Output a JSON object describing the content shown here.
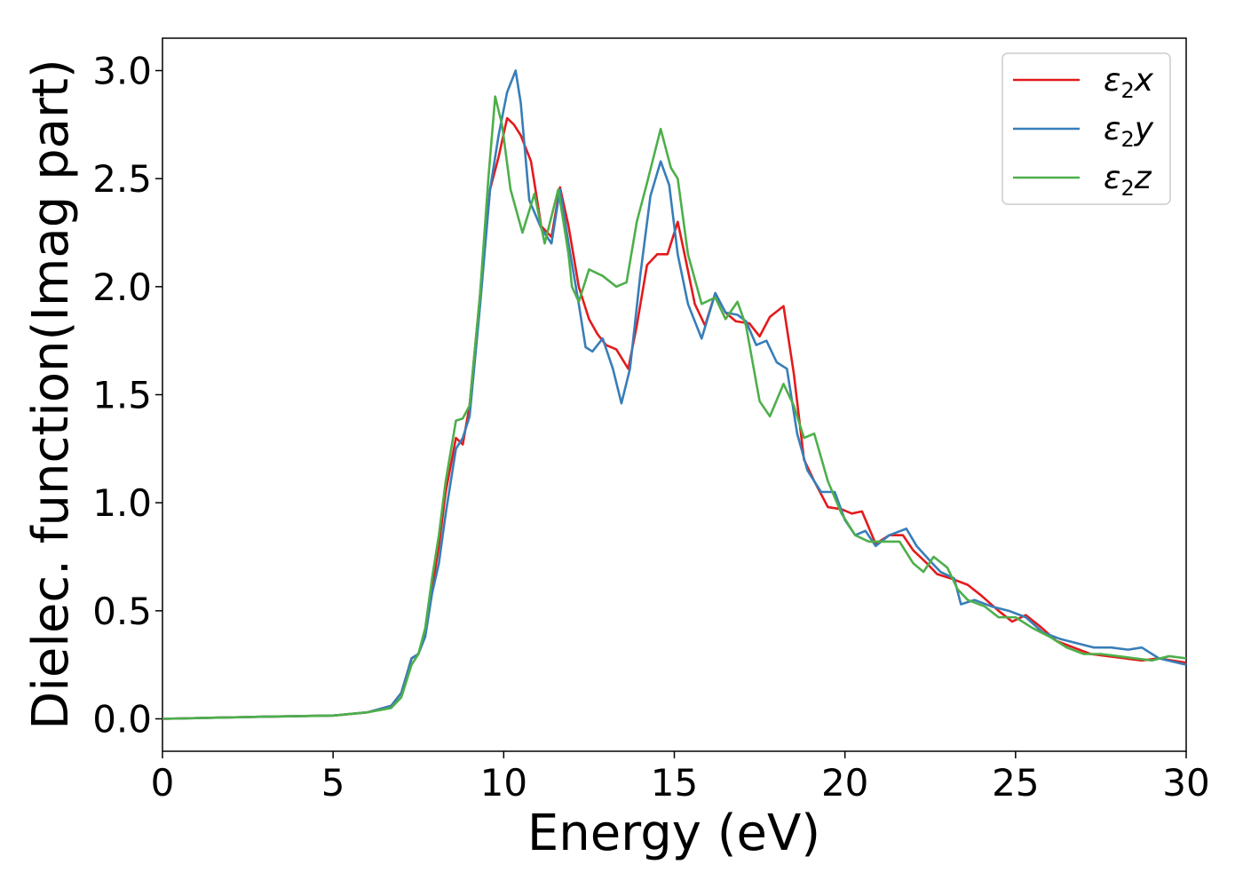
{
  "chart_data": {
    "type": "line",
    "title": "",
    "xlabel": "Energy (eV)",
    "ylabel": "Dielec. function(Imag part)",
    "xlim": [
      0,
      30
    ],
    "ylim": [
      -0.15,
      3.15
    ],
    "xticks": [
      0,
      5,
      10,
      15,
      20,
      25,
      30
    ],
    "yticks": [
      0.0,
      0.5,
      1.0,
      1.5,
      2.0,
      2.5,
      3.0
    ],
    "xtick_labels": [
      "0",
      "5",
      "10",
      "15",
      "20",
      "25",
      "30"
    ],
    "ytick_labels": [
      "0.0",
      "0.5",
      "1.0",
      "1.5",
      "2.0",
      "2.5",
      "3.0"
    ],
    "grid": false,
    "legend_position": "top-right",
    "series": [
      {
        "name": "ε₂x",
        "legend_symbol": "ε",
        "legend_subscript": "2",
        "legend_suffix": "x",
        "color": "#e41a1c",
        "points": [
          [
            0,
            0
          ],
          [
            3,
            0.01
          ],
          [
            5,
            0.015
          ],
          [
            6,
            0.03
          ],
          [
            6.7,
            0.06
          ],
          [
            7,
            0.12
          ],
          [
            7.3,
            0.28
          ],
          [
            7.5,
            0.3
          ],
          [
            7.7,
            0.4
          ],
          [
            7.9,
            0.6
          ],
          [
            8.1,
            0.8
          ],
          [
            8.3,
            1.05
          ],
          [
            8.6,
            1.3
          ],
          [
            8.8,
            1.27
          ],
          [
            9.0,
            1.45
          ],
          [
            9.3,
            1.95
          ],
          [
            9.6,
            2.45
          ],
          [
            9.85,
            2.6
          ],
          [
            10.1,
            2.78
          ],
          [
            10.3,
            2.75
          ],
          [
            10.5,
            2.7
          ],
          [
            10.8,
            2.58
          ],
          [
            11.1,
            2.28
          ],
          [
            11.4,
            2.23
          ],
          [
            11.65,
            2.46
          ],
          [
            11.9,
            2.28
          ],
          [
            12.2,
            2.0
          ],
          [
            12.5,
            1.85
          ],
          [
            12.75,
            1.78
          ],
          [
            13.0,
            1.73
          ],
          [
            13.3,
            1.71
          ],
          [
            13.65,
            1.62
          ],
          [
            13.9,
            1.82
          ],
          [
            14.2,
            2.1
          ],
          [
            14.5,
            2.15
          ],
          [
            14.8,
            2.15
          ],
          [
            15.1,
            2.3
          ],
          [
            15.3,
            2.15
          ],
          [
            15.6,
            1.92
          ],
          [
            15.9,
            1.82
          ],
          [
            16.2,
            1.97
          ],
          [
            16.5,
            1.88
          ],
          [
            16.8,
            1.84
          ],
          [
            17.2,
            1.83
          ],
          [
            17.5,
            1.77
          ],
          [
            17.8,
            1.86
          ],
          [
            18.2,
            1.91
          ],
          [
            18.5,
            1.6
          ],
          [
            18.8,
            1.2
          ],
          [
            19.1,
            1.1
          ],
          [
            19.5,
            0.98
          ],
          [
            19.9,
            0.97
          ],
          [
            20.2,
            0.95
          ],
          [
            20.5,
            0.96
          ],
          [
            20.9,
            0.81
          ],
          [
            21.3,
            0.85
          ],
          [
            21.7,
            0.85
          ],
          [
            22.0,
            0.78
          ],
          [
            22.4,
            0.72
          ],
          [
            22.7,
            0.67
          ],
          [
            23.1,
            0.65
          ],
          [
            23.6,
            0.62
          ],
          [
            24.0,
            0.57
          ],
          [
            24.5,
            0.5
          ],
          [
            24.9,
            0.45
          ],
          [
            25.3,
            0.48
          ],
          [
            25.7,
            0.43
          ],
          [
            26.2,
            0.36
          ],
          [
            26.7,
            0.33
          ],
          [
            27.2,
            0.3
          ],
          [
            27.7,
            0.29
          ],
          [
            28.2,
            0.28
          ],
          [
            28.7,
            0.27
          ],
          [
            29.2,
            0.28
          ],
          [
            30,
            0.26
          ]
        ]
      },
      {
        "name": "ε₂y",
        "legend_symbol": "ε",
        "legend_subscript": "2",
        "legend_suffix": "y",
        "color": "#377eb8",
        "points": [
          [
            0,
            0
          ],
          [
            3,
            0.01
          ],
          [
            5,
            0.015
          ],
          [
            6,
            0.03
          ],
          [
            6.7,
            0.06
          ],
          [
            7,
            0.12
          ],
          [
            7.3,
            0.28
          ],
          [
            7.5,
            0.3
          ],
          [
            7.7,
            0.38
          ],
          [
            7.9,
            0.58
          ],
          [
            8.1,
            0.72
          ],
          [
            8.3,
            0.95
          ],
          [
            8.6,
            1.25
          ],
          [
            8.8,
            1.3
          ],
          [
            9.0,
            1.4
          ],
          [
            9.3,
            1.9
          ],
          [
            9.6,
            2.45
          ],
          [
            9.85,
            2.7
          ],
          [
            10.1,
            2.9
          ],
          [
            10.35,
            3.0
          ],
          [
            10.5,
            2.85
          ],
          [
            10.75,
            2.4
          ],
          [
            11.1,
            2.27
          ],
          [
            11.4,
            2.2
          ],
          [
            11.65,
            2.45
          ],
          [
            11.9,
            2.2
          ],
          [
            12.2,
            1.92
          ],
          [
            12.4,
            1.72
          ],
          [
            12.6,
            1.7
          ],
          [
            12.9,
            1.76
          ],
          [
            13.2,
            1.62
          ],
          [
            13.45,
            1.46
          ],
          [
            13.7,
            1.62
          ],
          [
            14.0,
            2.05
          ],
          [
            14.3,
            2.42
          ],
          [
            14.6,
            2.58
          ],
          [
            14.85,
            2.47
          ],
          [
            15.1,
            2.15
          ],
          [
            15.4,
            1.92
          ],
          [
            15.8,
            1.76
          ],
          [
            16.2,
            1.97
          ],
          [
            16.5,
            1.88
          ],
          [
            16.85,
            1.87
          ],
          [
            17.1,
            1.84
          ],
          [
            17.4,
            1.73
          ],
          [
            17.7,
            1.75
          ],
          [
            18.0,
            1.65
          ],
          [
            18.3,
            1.62
          ],
          [
            18.6,
            1.32
          ],
          [
            18.9,
            1.15
          ],
          [
            19.3,
            1.05
          ],
          [
            19.7,
            1.05
          ],
          [
            20.0,
            0.92
          ],
          [
            20.3,
            0.85
          ],
          [
            20.6,
            0.87
          ],
          [
            20.9,
            0.8
          ],
          [
            21.3,
            0.85
          ],
          [
            21.8,
            0.88
          ],
          [
            22.1,
            0.8
          ],
          [
            22.5,
            0.73
          ],
          [
            22.8,
            0.68
          ],
          [
            23.2,
            0.65
          ],
          [
            23.4,
            0.53
          ],
          [
            23.8,
            0.55
          ],
          [
            24.3,
            0.52
          ],
          [
            24.8,
            0.5
          ],
          [
            25.3,
            0.47
          ],
          [
            25.8,
            0.4
          ],
          [
            26.3,
            0.37
          ],
          [
            26.8,
            0.35
          ],
          [
            27.3,
            0.33
          ],
          [
            27.8,
            0.33
          ],
          [
            28.3,
            0.32
          ],
          [
            28.7,
            0.33
          ],
          [
            29.2,
            0.28
          ],
          [
            30,
            0.25
          ]
        ]
      },
      {
        "name": "ε₂z",
        "legend_symbol": "ε",
        "legend_subscript": "2",
        "legend_suffix": "z",
        "color": "#4daf4a",
        "points": [
          [
            0,
            0
          ],
          [
            3,
            0.01
          ],
          [
            5,
            0.015
          ],
          [
            6,
            0.03
          ],
          [
            6.7,
            0.05
          ],
          [
            7,
            0.1
          ],
          [
            7.3,
            0.25
          ],
          [
            7.5,
            0.3
          ],
          [
            7.7,
            0.42
          ],
          [
            7.9,
            0.65
          ],
          [
            8.1,
            0.85
          ],
          [
            8.3,
            1.1
          ],
          [
            8.6,
            1.38
          ],
          [
            8.8,
            1.39
          ],
          [
            9.0,
            1.45
          ],
          [
            9.3,
            1.95
          ],
          [
            9.55,
            2.5
          ],
          [
            9.75,
            2.88
          ],
          [
            9.95,
            2.75
          ],
          [
            10.2,
            2.45
          ],
          [
            10.55,
            2.25
          ],
          [
            10.9,
            2.43
          ],
          [
            11.2,
            2.2
          ],
          [
            11.6,
            2.45
          ],
          [
            11.9,
            2.15
          ],
          [
            12.0,
            2.0
          ],
          [
            12.2,
            1.93
          ],
          [
            12.5,
            2.08
          ],
          [
            12.9,
            2.05
          ],
          [
            13.3,
            2.0
          ],
          [
            13.6,
            2.02
          ],
          [
            13.9,
            2.3
          ],
          [
            14.2,
            2.48
          ],
          [
            14.6,
            2.73
          ],
          [
            14.9,
            2.55
          ],
          [
            15.1,
            2.5
          ],
          [
            15.4,
            2.15
          ],
          [
            15.8,
            1.92
          ],
          [
            16.2,
            1.95
          ],
          [
            16.5,
            1.85
          ],
          [
            16.85,
            1.93
          ],
          [
            17.1,
            1.82
          ],
          [
            17.5,
            1.47
          ],
          [
            17.8,
            1.4
          ],
          [
            18.2,
            1.55
          ],
          [
            18.5,
            1.45
          ],
          [
            18.8,
            1.3
          ],
          [
            19.1,
            1.32
          ],
          [
            19.5,
            1.1
          ],
          [
            19.9,
            0.95
          ],
          [
            20.3,
            0.85
          ],
          [
            20.7,
            0.82
          ],
          [
            21.2,
            0.82
          ],
          [
            21.6,
            0.82
          ],
          [
            22.0,
            0.72
          ],
          [
            22.3,
            0.68
          ],
          [
            22.6,
            0.75
          ],
          [
            23.0,
            0.7
          ],
          [
            23.3,
            0.6
          ],
          [
            23.6,
            0.55
          ],
          [
            24.1,
            0.52
          ],
          [
            24.5,
            0.47
          ],
          [
            25.0,
            0.47
          ],
          [
            25.5,
            0.42
          ],
          [
            26.0,
            0.38
          ],
          [
            26.5,
            0.33
          ],
          [
            27.0,
            0.3
          ],
          [
            27.5,
            0.3
          ],
          [
            28.0,
            0.29
          ],
          [
            28.5,
            0.28
          ],
          [
            29.0,
            0.27
          ],
          [
            29.5,
            0.29
          ],
          [
            30,
            0.28
          ]
        ]
      }
    ]
  }
}
